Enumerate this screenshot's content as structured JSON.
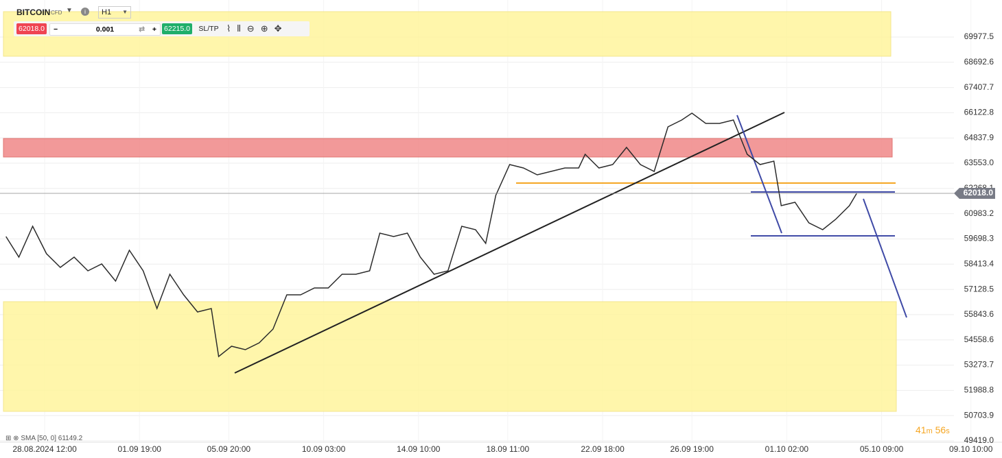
{
  "header": {
    "symbol": "BITCOIN",
    "kind": "CFD",
    "timeframe": "H1"
  },
  "toolbar": {
    "sell": "62018.0",
    "quantity": "0.001",
    "buy": "62215.0",
    "sltp": "SL/TP"
  },
  "indicator": "SMA [50, 0] 61149.2",
  "countdown": [
    "41",
    "m",
    "56",
    "s"
  ],
  "chart_data": {
    "type": "line",
    "color": "#2b2b2b",
    "x": [
      -42,
      -28,
      -13,
      2,
      17,
      32,
      47,
      62,
      77,
      92,
      107,
      122,
      136,
      151,
      166,
      181,
      189,
      203,
      218,
      233,
      248,
      263,
      278,
      293,
      308,
      323,
      338,
      353,
      364,
      379,
      394,
      408,
      423,
      438,
      453,
      468,
      479,
      490,
      505,
      520,
      535,
      550,
      565,
      580,
      587,
      602,
      617,
      632,
      647,
      662,
      677,
      692,
      703,
      718,
      733,
      748,
      763,
      777,
      792,
      800,
      815,
      830,
      845,
      859,
      874,
      882
    ],
    "values": [
      59820,
      58773,
      60344,
      58948,
      58250,
      58773,
      58075,
      58424,
      57552,
      59122,
      58075,
      56156,
      57901,
      56854,
      55981,
      56156,
      53712,
      54236,
      54062,
      54410,
      55108,
      56854,
      56854,
      57202,
      57202,
      57901,
      57901,
      58075,
      59995,
      59820,
      59995,
      58773,
      57901,
      58075,
      60344,
      60169,
      59471,
      61915,
      63485,
      63311,
      62961,
      63136,
      63311,
      63311,
      64009,
      63311,
      63485,
      64358,
      63485,
      63136,
      65405,
      65754,
      66103,
      65580,
      65580,
      65754,
      64009,
      63485,
      63660,
      61391,
      61566,
      60518,
      60169,
      60693,
      61391,
      62018
    ],
    "xlim": [
      -48.5,
      987.6
    ],
    "ylim": [
      49349,
      71862
    ],
    "yticks": [
      69977.5,
      68692.6,
      67407.7,
      66122.8,
      64837.9,
      {
        "value": 63553,
        "label": "63553.0"
      },
      62268.1,
      60983.2,
      59698.3,
      58413.4,
      57128.5,
      55843.6,
      54558.6,
      53273.7,
      51988.8,
      50703.9,
      {
        "value": 49419,
        "label": "49419.0"
      }
    ],
    "xticks": [
      {
        "value": 0,
        "label": "28.08.2024 12:00"
      },
      {
        "value": 103,
        "label": "01.09 19:00"
      },
      {
        "value": 200,
        "label": "05.09 20:00"
      },
      {
        "value": 303,
        "label": "10.09 03:00"
      },
      {
        "value": 406,
        "label": "14.09 10:00"
      },
      {
        "value": 503,
        "label": "18.09 11:00"
      },
      {
        "value": 606,
        "label": "22.09 18:00"
      },
      {
        "value": 703,
        "label": "26.09 19:00"
      },
      {
        "value": 806,
        "label": "01.10 02:00"
      },
      {
        "value": 909,
        "label": "05.10 09:00"
      },
      {
        "value": 1006,
        "label": "09.10 10:00"
      }
    ],
    "last_price": {
      "value": 62018,
      "label": "62018.0"
    },
    "grid": true
  }
}
